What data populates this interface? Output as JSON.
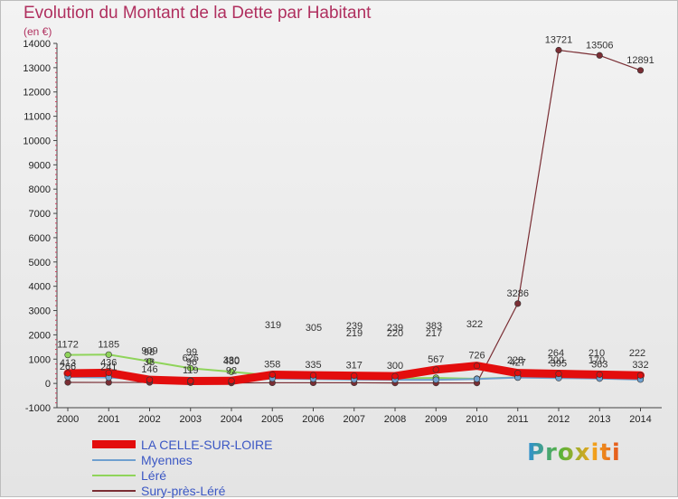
{
  "chart_data": {
    "type": "line",
    "title": "Evolution du Montant de la Dette par Habitant",
    "subtitle": "(en €)",
    "xlabel": "",
    "ylabel": "",
    "ylim": [
      -1000,
      14000
    ],
    "yticks": [
      -1000,
      0,
      1000,
      2000,
      3000,
      4000,
      5000,
      6000,
      7000,
      8000,
      9000,
      10000,
      11000,
      12000,
      13000,
      14000
    ],
    "categories": [
      "2000",
      "2001",
      "2002",
      "2003",
      "2004",
      "2005",
      "2006",
      "2007",
      "2008",
      "2009",
      "2010",
      "2011",
      "2012",
      "2013",
      "2014"
    ],
    "series": [
      {
        "name": "Sury-près-Léré",
        "color": "#7a2e34",
        "values": [
          43,
          40,
          40,
          30,
          20,
          25,
          25,
          25,
          20,
          20,
          20,
          3286,
          13721,
          13506,
          12891
        ],
        "labels": [
          "",
          "",
          "",
          "",
          "",
          "",
          "",
          "",
          "",
          "",
          "",
          "3286",
          "13721",
          "13506",
          "12891"
        ]
      },
      {
        "name": "Léré",
        "color": "#8fd45a",
        "values": [
          1172,
          1185,
          909,
          625,
          480,
          320,
          270,
          220,
          200,
          230,
          190,
          250,
          250,
          210,
          190
        ],
        "labels": [
          "1172",
          "1185",
          "909",
          "625",
          "480",
          "",
          "",
          "",
          "",
          "",
          "",
          "",
          "",
          "",
          ""
        ]
      },
      {
        "name": "Myennes",
        "color": "#6fa0cf",
        "values": [
          266,
          241,
          146,
          119,
          92,
          200,
          180,
          160,
          150,
          150,
          180,
          240,
          220,
          200,
          160
        ],
        "labels": [
          "266",
          "241",
          "146",
          "119",
          "92",
          "",
          "",
          "",
          "",
          "",
          "",
          "",
          "",
          "",
          ""
        ]
      },
      {
        "name": "LA CELLE-SUR-LOIRE",
        "color": "#e30d0d",
        "values": [
          413,
          436,
          149,
          98,
          107,
          358,
          335,
          317,
          300,
          567,
          726,
          427,
          395,
          363,
          332
        ],
        "labels": [
          "413",
          "436",
          "",
          "",
          "",
          "358",
          "335",
          "317",
          "300",
          "567",
          "726",
          "427",
          "395",
          "363",
          "332"
        ]
      }
    ],
    "overlap_labels": [
      "98",
      "99",
      "38",
      "96",
      "330",
      "319",
      "305",
      "239",
      "219",
      "239",
      "220",
      "383",
      "217",
      "322",
      "228",
      "264",
      "200",
      "210",
      "170",
      "222"
    ]
  },
  "legend": {
    "items": [
      {
        "label": "LA CELLE-SUR-LOIRE",
        "color": "#e30d0d"
      },
      {
        "label": "Myennes",
        "color": "#6fa0cf"
      },
      {
        "label": "Léré",
        "color": "#8fd45a"
      },
      {
        "label": "Sury-près-Léré",
        "color": "#7a2e34"
      }
    ]
  },
  "brand": "Proxiti"
}
